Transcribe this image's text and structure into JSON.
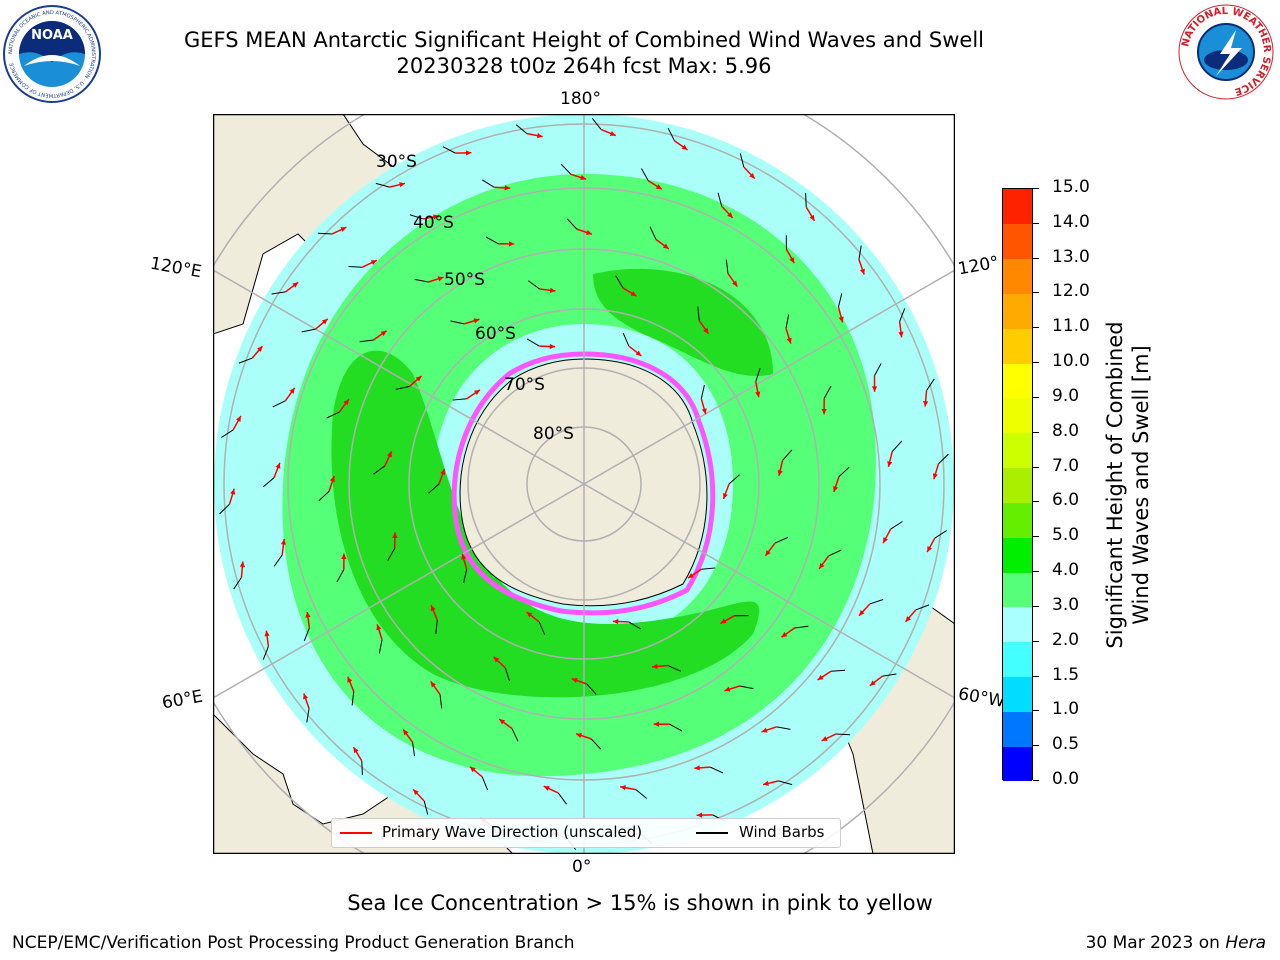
{
  "header": {
    "title_line1": "GEFS MEAN Antarctic Significant Height of Combined Wind Waves and Swell",
    "title_line2": "20230328 t00z 264h fcst   Max: 5.96"
  },
  "logos": {
    "noaa_text": "NOAA",
    "noaa_ring_text": "NATIONAL OCEANIC AND ATMOSPHERIC ADMINISTRATION · U.S. DEPARTMENT OF COMMERCE",
    "nws_ring_text": "NATIONAL WEATHER SERVICE"
  },
  "map": {
    "longitude_labels": {
      "top": "180°",
      "left_upper": "120°E",
      "left_lower": "60°E",
      "right_upper": "120°",
      "right_lower": "60°W",
      "bottom": "0°"
    },
    "latitude_labels": [
      "30°S",
      "40°S",
      "50°S",
      "60°S",
      "70°S",
      "80°S"
    ],
    "colors": {
      "land": "#efecdc",
      "ocean_low": "#aafff8",
      "wave_3_4": "#55ff77",
      "wave_4_5": "#22dd22",
      "sea_ice": "#ff55ff",
      "grid": "#b0b0b0"
    }
  },
  "colorbar": {
    "label_line1": "Significant Height of Combined",
    "label_line2": "Wind Waves and Swell [m]",
    "ticks": [
      "15.0",
      "14.0",
      "13.0",
      "12.0",
      "11.0",
      "10.0",
      "9.0",
      "8.0",
      "7.0",
      "6.0",
      "5.0",
      "4.0",
      "3.0",
      "2.0",
      "1.5",
      "1.0",
      "0.5",
      "0.0"
    ],
    "colors": [
      "#0000ff",
      "#0077ff",
      "#00ddff",
      "#44ffff",
      "#aaffff",
      "#55ff77",
      "#00ee00",
      "#66ee00",
      "#aaee00",
      "#ccff00",
      "#eeff00",
      "#ffff00",
      "#ffcc00",
      "#ffaa00",
      "#ff8800",
      "#ff5500",
      "#ff2200"
    ]
  },
  "legend": {
    "primary_wave": "Primary Wave Direction (unscaled)",
    "wind_barbs": "Wind Barbs"
  },
  "footer": {
    "note": "Sea Ice Concentration > 15% is shown in pink to yellow",
    "left": "NCEP/EMC/Verification Post Processing Product Generation Branch",
    "right_date": "30 Mar 2023 on",
    "right_host": "Hera"
  }
}
